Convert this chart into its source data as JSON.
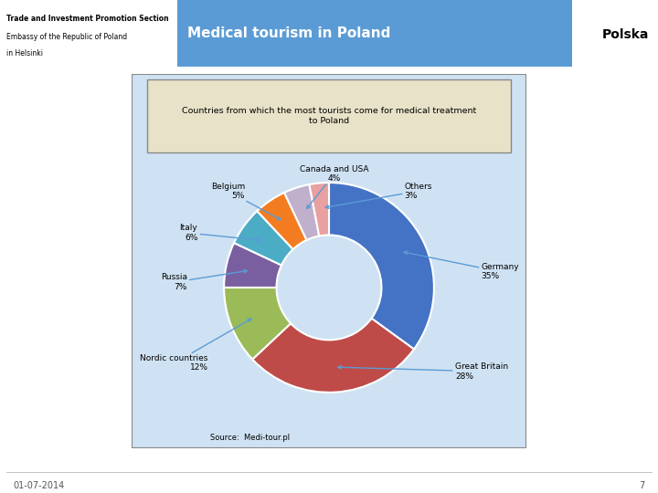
{
  "title_bar_color": "#5b9bd5",
  "title_text": "Medical tourism in Poland",
  "header_left_line1": "Trade and Investment Promotion Section",
  "header_left_line2": "Embassy of the Republic of Poland",
  "header_left_line3": "in Helsinki",
  "chart_title": "Countries from which the most tourists come for medical treatment\nto Poland",
  "chart_bg": "#cfe2f3",
  "chart_border_color": "#888888",
  "chart_title_bg": "#e8e2c8",
  "donut_values": [
    35,
    28,
    12,
    7,
    6,
    5,
    4,
    3
  ],
  "donut_colors": [
    "#4472c4",
    "#be4b48",
    "#9bbb59",
    "#7a5fa0",
    "#4bacc6",
    "#f47c20",
    "#c0b0cc",
    "#e8a0a0"
  ],
  "label_texts": [
    "Germany\n35%",
    "Great Britain\n28%",
    "Nordic countries\n12%",
    "Russia\n7%",
    "Italy\n6%",
    "Belgium\n5%",
    "Canada and USA\n4%",
    "Others\n3%"
  ],
  "source_text": "Source:  Medi-tour.pl",
  "date_text": "01-07-2014",
  "page_num": "7",
  "bg_color": "#ffffff",
  "arrow_color": "#5b9bd5"
}
